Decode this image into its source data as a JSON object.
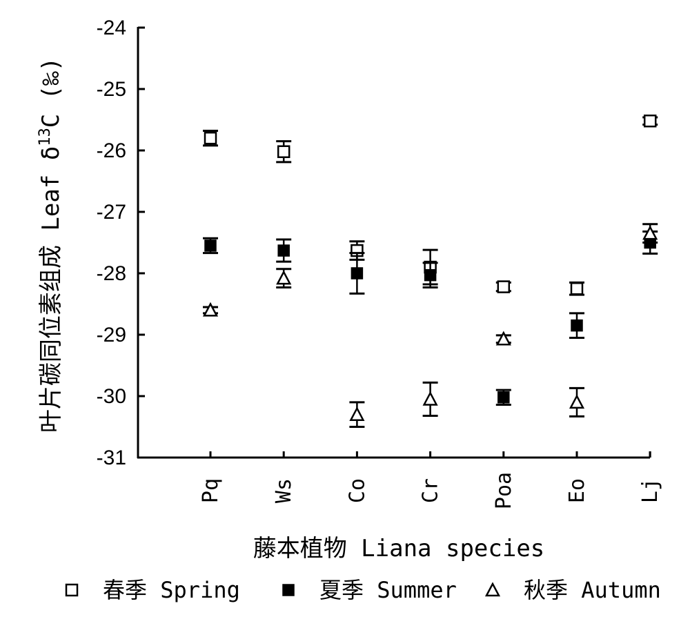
{
  "chart_data": {
    "type": "scatter",
    "title": "",
    "xlabel": "藤本植物 Liana species",
    "ylabel_main": "叶片碳同位素组成 Leaf δ",
    "ylabel_sup": "13",
    "ylabel_tail": "C (‰)",
    "categories": [
      "Pq",
      "Ws",
      "Co",
      "Cr",
      "Poa",
      "Eo",
      "Lj"
    ],
    "ylim": [
      -31,
      -24
    ],
    "yticks": [
      -24,
      -25,
      -26,
      -27,
      -28,
      -29,
      -30,
      -31
    ],
    "ytick_labels": [
      "-24",
      "-25",
      "-26",
      "-27",
      "-28",
      "-29",
      "-30",
      "-31"
    ],
    "error_bars": true,
    "grid": false,
    "legend_position": "bottom",
    "series": [
      {
        "name": "春季 Spring",
        "marker": "open-square",
        "values": [
          -25.8,
          -26.02,
          -27.63,
          -27.9,
          -28.22,
          -28.25,
          -25.52
        ],
        "errors": [
          0.12,
          0.17,
          0.15,
          0.28,
          0.07,
          0.1,
          0.06
        ]
      },
      {
        "name": "夏季 Summer",
        "marker": "filled-square",
        "values": [
          -27.55,
          -27.63,
          -28.0,
          -28.03,
          -30.02,
          -28.85,
          -27.5
        ],
        "errors": [
          0.12,
          0.18,
          0.33,
          0.2,
          0.12,
          0.2,
          0.18
        ]
      },
      {
        "name": "秋季 Autumn",
        "marker": "open-triangle",
        "values": [
          -28.6,
          -28.08,
          -30.3,
          -30.05,
          -29.07,
          -30.1,
          -27.35
        ],
        "errors": [
          0.05,
          0.15,
          0.2,
          0.27,
          0.06,
          0.23,
          0.15
        ]
      }
    ]
  }
}
